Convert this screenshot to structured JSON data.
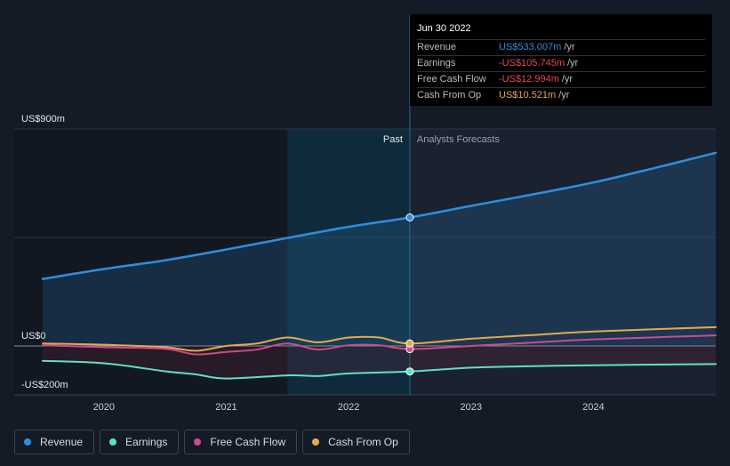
{
  "chart_data": {
    "type": "area",
    "y_ticks": [
      "US$900m",
      "US$0",
      "-US$200m"
    ],
    "ylim": [
      -200,
      900
    ],
    "x_ticks": [
      "2020",
      "2021",
      "2022",
      "2023",
      "2024"
    ],
    "past_label": "Past",
    "forecast_label": "Analysts Forecasts",
    "series": [
      {
        "name": "Revenue",
        "color": "#2d8fe0",
        "x": [
          2019.5,
          2020.0,
          2020.5,
          2021.0,
          2021.5,
          2022.0,
          2022.5,
          2023.0,
          2023.5,
          2024.0,
          2024.5,
          2025.0
        ],
        "y": [
          278,
          319,
          355,
          400,
          448,
          494,
          533,
          581,
          628,
          678,
          738,
          801
        ]
      },
      {
        "name": "Earnings",
        "color": "#5fe0c8",
        "x": [
          2019.5,
          2020.0,
          2020.5,
          2020.75,
          2021.0,
          2021.5,
          2021.75,
          2022.0,
          2022.5,
          2023.0,
          2023.5,
          2024.0,
          2025.0
        ],
        "y": [
          -62,
          -72,
          -105,
          -118,
          -135,
          -122,
          -125,
          -114,
          -106,
          -90,
          -84,
          -80,
          -75
        ]
      },
      {
        "name": "Free Cash Flow",
        "color": "#cc4b8c",
        "x": [
          2019.5,
          2020.0,
          2020.5,
          2020.75,
          2021.0,
          2021.25,
          2021.5,
          2021.75,
          2022.0,
          2022.25,
          2022.5,
          2023.0,
          2023.5,
          2024.0,
          2025.0
        ],
        "y": [
          3,
          -5,
          -12,
          -35,
          -25,
          -15,
          10,
          -15,
          3,
          3,
          -13,
          0,
          14,
          27,
          44
        ]
      },
      {
        "name": "Cash From Op",
        "color": "#e6a84e",
        "x": [
          2019.5,
          2020.0,
          2020.5,
          2020.75,
          2021.0,
          2021.25,
          2021.5,
          2021.75,
          2022.0,
          2022.25,
          2022.5,
          2023.0,
          2023.5,
          2024.0,
          2025.0
        ],
        "y": [
          10,
          5,
          -5,
          -20,
          0,
          10,
          35,
          15,
          35,
          35,
          10,
          30,
          45,
          60,
          78
        ]
      }
    ]
  },
  "tooltip": {
    "date": "Jun 30 2022",
    "rows": [
      {
        "label": "Revenue",
        "value": "US$533.007m",
        "unit": "/yr",
        "color": "#2d8fe0"
      },
      {
        "label": "Earnings",
        "value": "-US$105.745m",
        "unit": "/yr",
        "color": "#e8484e"
      },
      {
        "label": "Free Cash Flow",
        "value": "-US$12.994m",
        "unit": "/yr",
        "color": "#e8484e"
      },
      {
        "label": "Cash From Op",
        "value": "US$10.521m",
        "unit": "/yr",
        "color": "#e6a84e"
      }
    ]
  },
  "legend": [
    {
      "label": "Revenue",
      "color": "#2d8fe0"
    },
    {
      "label": "Earnings",
      "color": "#5fe0c8"
    },
    {
      "label": "Free Cash Flow",
      "color": "#cc4b8c"
    },
    {
      "label": "Cash From Op",
      "color": "#e6a84e"
    }
  ]
}
